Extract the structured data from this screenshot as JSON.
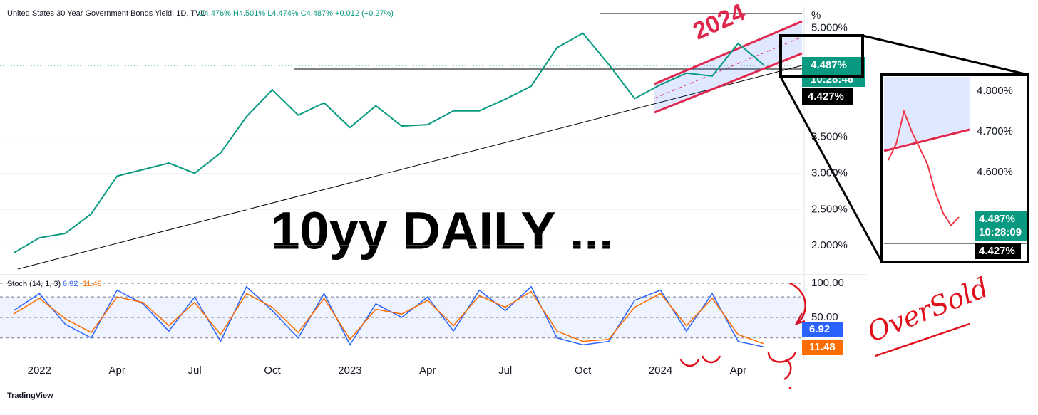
{
  "header": {
    "title": "United States 30 Year Government Bonds Yield, 1D, TVC",
    "ohlc": "O4.476% H4.501% L4.474% C4.487% +0.012 (+0.27%)"
  },
  "chart_data": [
    {
      "type": "line",
      "title": "10yy DAILY ...",
      "annotation": "2024",
      "axis_unit": "%",
      "categories": [
        null,
        "2022",
        null,
        null,
        "Apr",
        null,
        null,
        "Jul",
        null,
        null,
        "Oct",
        null,
        null,
        "2023",
        null,
        null,
        "Apr",
        null,
        null,
        "Jul",
        null,
        null,
        "Oct",
        null,
        null,
        "2024",
        null,
        null,
        "Apr",
        null
      ],
      "values": [
        1.9,
        2.11,
        2.17,
        2.44,
        2.96,
        3.05,
        3.14,
        3.0,
        3.28,
        3.78,
        4.15,
        3.8,
        3.97,
        3.63,
        3.93,
        3.65,
        3.67,
        3.86,
        3.86,
        4.02,
        4.2,
        4.73,
        4.93,
        4.5,
        4.03,
        4.22,
        4.38,
        4.34,
        4.79,
        4.49
      ],
      "color": "#089981",
      "ylim": [
        1.61,
        5.29
      ],
      "yticks": [
        {
          "value": 5.0,
          "label": "5.000%"
        },
        {
          "value": 3.5,
          "label": "3.500%"
        },
        {
          "value": 3.0,
          "label": "3.000%"
        },
        {
          "value": 2.5,
          "label": "2.500%"
        },
        {
          "value": 2.0,
          "label": "2.000%"
        }
      ],
      "grid": true,
      "last_price_label": "4.487%",
      "countdown": "10:28:46",
      "level_label": "4.427%"
    },
    {
      "type": "stoch",
      "title": "Stoch (14, 1, 3)",
      "series": [
        {
          "color": "#2962ff",
          "values": [
            60,
            85,
            40,
            20,
            90,
            70,
            30,
            80,
            15,
            95,
            60,
            20,
            85,
            10,
            70,
            50,
            80,
            30,
            90,
            60,
            95,
            20,
            10,
            15,
            75,
            90,
            30,
            85,
            15,
            6.92
          ]
        },
        {
          "color": "#ff6d00",
          "values": [
            55,
            78,
            48,
            28,
            80,
            72,
            38,
            72,
            25,
            85,
            65,
            28,
            78,
            18,
            62,
            55,
            75,
            38,
            82,
            65,
            88,
            30,
            15,
            18,
            65,
            85,
            38,
            78,
            25,
            11.48
          ]
        }
      ],
      "ylim": [
        -11.5,
        110.4
      ],
      "yticks": [
        {
          "value": 100,
          "label": "100.00"
        },
        {
          "value": 50,
          "label": "50.00"
        }
      ],
      "bands": [
        20,
        80
      ]
    },
    {
      "type": "line",
      "values": [
        4.63,
        4.67,
        4.75,
        4.7,
        4.66,
        4.62,
        4.55,
        4.5,
        4.47,
        4.49
      ],
      "color": "#f23645",
      "ylim": [
        4.38,
        4.84
      ],
      "yticks": [
        {
          "value": 4.8,
          "label": "4.800%"
        },
        {
          "value": 4.7,
          "label": "4.700%"
        },
        {
          "value": 4.6,
          "label": "4.600%"
        }
      ],
      "last_price_label": "4.487%",
      "countdown": "10:28:09",
      "level_label": "4.427%"
    }
  ],
  "annotations": {
    "oversold": "OverSold",
    "logo": "TradingView"
  }
}
